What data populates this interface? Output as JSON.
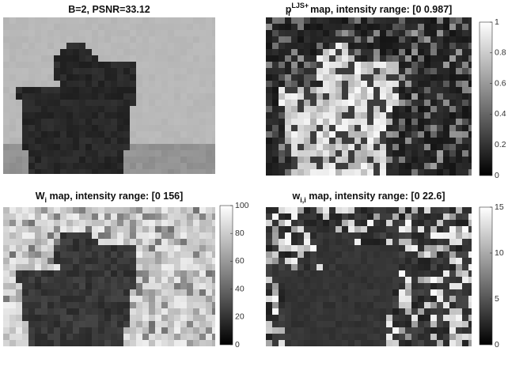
{
  "panels": [
    {
      "title": {
        "text": "B=2, PSNR=33.12"
      }
    },
    {
      "title": {
        "base": "p",
        "sub": "i",
        "sup": "LJS+",
        "rest": " map, intensity range: [0 0.987]"
      },
      "colorbar": {
        "lim": [
          0,
          1
        ],
        "ticks": [
          0,
          0.2,
          0.4,
          0.6,
          0.8,
          1
        ]
      }
    },
    {
      "title": {
        "base": "W",
        "sub": "i",
        "rest": " map, intensity range: [0 156]"
      },
      "colorbar": {
        "lim": [
          0,
          100
        ],
        "ticks": [
          0,
          20,
          40,
          60,
          80,
          100
        ]
      }
    },
    {
      "title": {
        "base": "w",
        "sub": "i,i",
        "rest": " map, intensity range: [0 22.6]"
      },
      "colorbar": {
        "lim": [
          0,
          15
        ],
        "ticks": [
          0,
          5,
          10,
          15
        ]
      }
    }
  ]
}
